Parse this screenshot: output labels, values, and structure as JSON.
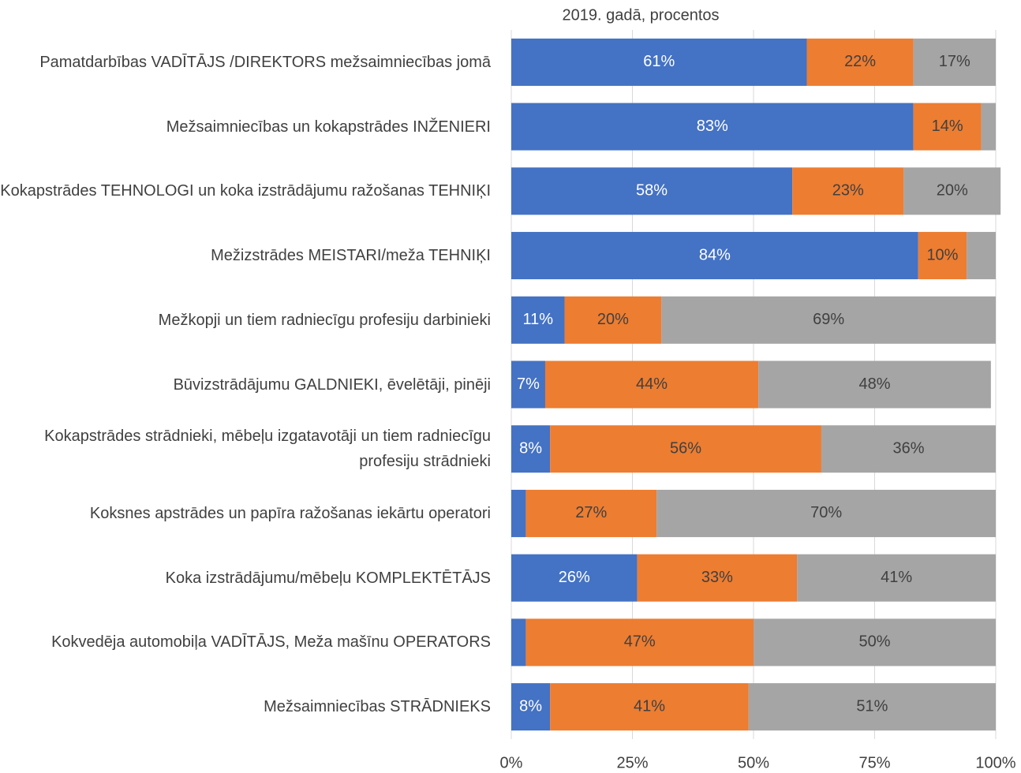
{
  "chart_data": {
    "type": "stacked-barh",
    "title": "2019. gadā, procentos",
    "categories": [
      "Pamatdarbības VADĪTĀJS /DIREKTORS mežsaimniecības jomā",
      "Mežsaimniecības un kokapstrādes INŽENIERI",
      "Kokapstrādes TEHNOLOGI un koka izstrādājumu ražošanas TEHNIĶI",
      "Mežizstrādes MEISTARI/meža TEHNIĶI",
      "Mežkopji un tiem radniecīgu profesiju darbinieki",
      "Būvizstrādājumu GALDNIEKI, ēvelētāji, pinēji",
      "Kokapstrādes strādnieki, mēbeļu izgatavotāji un tiem radniecīgu profesiju strādnieki",
      "Koksnes apstrādes un papīra ražošanas iekārtu operatori",
      "Koka izstrādājumu/mēbeļu KOMPLEKTĒTĀJS",
      "Kokvedēja automobiļa VADĪTĀJS, Meža mašīnu OPERATORS",
      "Mežsaimniecības STRĀDNIEKS"
    ],
    "series": [
      {
        "color": "#4472c4",
        "values": [
          61,
          83,
          58,
          84,
          11,
          7,
          8,
          3,
          26,
          3,
          8
        ],
        "value_labels": [
          "61%",
          "83%",
          "58%",
          "84%",
          "11%",
          "7%",
          "8%",
          null,
          "26%",
          null,
          "8%"
        ]
      },
      {
        "color": "#ed7d31",
        "values": [
          22,
          14,
          23,
          10,
          20,
          44,
          56,
          27,
          33,
          47,
          41
        ],
        "value_labels": [
          "22%",
          "14%",
          "23%",
          "10%",
          "20%",
          "44%",
          "56%",
          "27%",
          "33%",
          "47%",
          "41%"
        ]
      },
      {
        "color": "#a5a5a5",
        "values": [
          17,
          3,
          20,
          6,
          69,
          48,
          36,
          70,
          41,
          50,
          51
        ],
        "value_labels": [
          "17%",
          null,
          "20%",
          null,
          "69%",
          "48%",
          "36%",
          "70%",
          "41%",
          "50%",
          "51%"
        ]
      }
    ],
    "xlim": [
      0,
      100
    ],
    "xticks": [
      {
        "value": 0,
        "label": "0%"
      },
      {
        "value": 25,
        "label": "25%"
      },
      {
        "value": 50,
        "label": "50%"
      },
      {
        "value": 75,
        "label": "75%"
      },
      {
        "value": 100,
        "label": "100%"
      }
    ],
    "grid": true
  }
}
